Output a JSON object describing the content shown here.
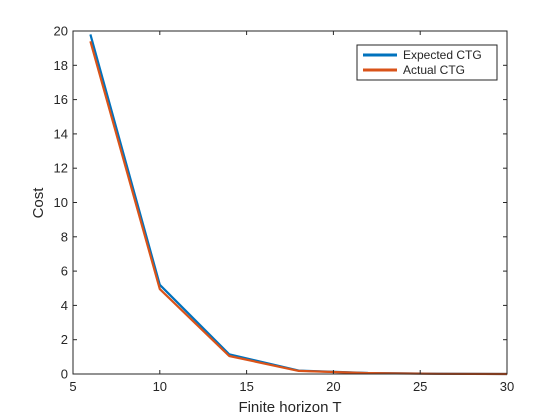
{
  "chart_data": {
    "type": "line",
    "xlabel": "Finite horizon T",
    "ylabel": "Cost",
    "xlim": [
      5,
      30
    ],
    "ylim": [
      0,
      20
    ],
    "xticks": [
      5,
      10,
      15,
      20,
      25,
      30
    ],
    "yticks": [
      0,
      2,
      4,
      6,
      8,
      10,
      12,
      14,
      16,
      18,
      20
    ],
    "grid": false,
    "legend_position": "top-right",
    "series": [
      {
        "name": "Expected CTG",
        "color": "#0072BD",
        "x": [
          6,
          10,
          14,
          18,
          22,
          26,
          30
        ],
        "y": [
          19.8,
          5.2,
          1.15,
          0.2,
          0.06,
          0.02,
          0.0
        ]
      },
      {
        "name": "Actual CTG",
        "color": "#D95319",
        "x": [
          6,
          10,
          14,
          18,
          22,
          26,
          30
        ],
        "y": [
          19.4,
          4.95,
          1.05,
          0.18,
          0.05,
          0.01,
          0.0
        ]
      }
    ]
  }
}
